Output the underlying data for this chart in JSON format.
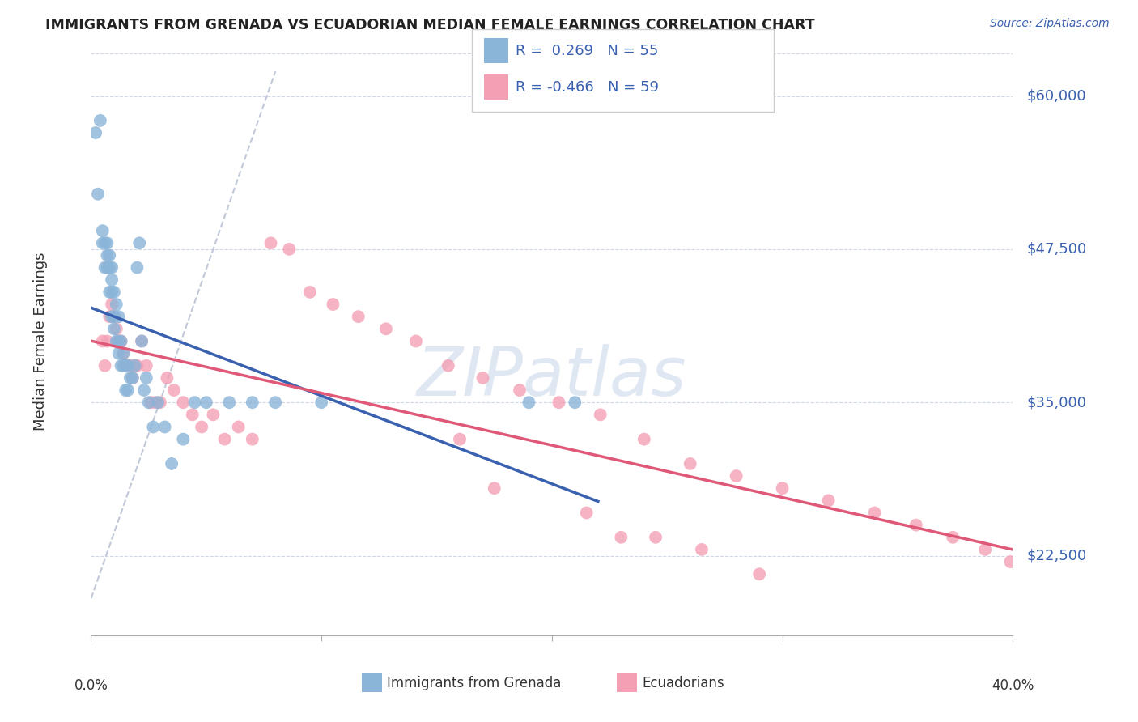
{
  "title": "IMMIGRANTS FROM GRENADA VS ECUADORIAN MEDIAN FEMALE EARNINGS CORRELATION CHART",
  "source": "Source: ZipAtlas.com",
  "ylabel": "Median Female Earnings",
  "yticks": [
    22500,
    35000,
    47500,
    60000
  ],
  "ytick_labels": [
    "$22,500",
    "$35,000",
    "$47,500",
    "$60,000"
  ],
  "xmin": 0.0,
  "xmax": 0.4,
  "ymin": 16000,
  "ymax": 64000,
  "blue_color": "#8ab4d8",
  "pink_color": "#f4a0b4",
  "blue_line_color": "#3a60b0",
  "pink_line_color": "#e05878",
  "ref_line_color": "#c0c8d8",
  "legend_label_blue": "Immigrants from Grenada",
  "legend_label_pink": "Ecuadorians",
  "watermark": "ZIPatlas",
  "title_color": "#222222",
  "source_color": "#3a60b0",
  "axis_label_color": "#333333",
  "tick_label_color": "#3a60b0",
  "blue_x": [
    0.002,
    0.003,
    0.004,
    0.005,
    0.005,
    0.006,
    0.006,
    0.007,
    0.007,
    0.007,
    0.008,
    0.008,
    0.008,
    0.009,
    0.009,
    0.009,
    0.009,
    0.01,
    0.01,
    0.01,
    0.011,
    0.011,
    0.012,
    0.012,
    0.012,
    0.013,
    0.013,
    0.014,
    0.014,
    0.015,
    0.015,
    0.016,
    0.016,
    0.017,
    0.018,
    0.019,
    0.02,
    0.021,
    0.022,
    0.023,
    0.024,
    0.025,
    0.027,
    0.029,
    0.032,
    0.035,
    0.04,
    0.045,
    0.05,
    0.06,
    0.07,
    0.08,
    0.1,
    0.19,
    0.21
  ],
  "blue_y": [
    57000,
    52000,
    58000,
    49000,
    48000,
    48000,
    46000,
    48000,
    47000,
    46000,
    47000,
    46000,
    44000,
    46000,
    45000,
    44000,
    42000,
    44000,
    42000,
    41000,
    43000,
    40000,
    42000,
    40000,
    39000,
    40000,
    38000,
    39000,
    38000,
    38000,
    36000,
    38000,
    36000,
    37000,
    37000,
    38000,
    46000,
    48000,
    40000,
    36000,
    37000,
    35000,
    33000,
    35000,
    33000,
    30000,
    32000,
    35000,
    35000,
    35000,
    35000,
    35000,
    35000,
    35000,
    35000
  ],
  "pink_x": [
    0.005,
    0.006,
    0.007,
    0.008,
    0.009,
    0.01,
    0.011,
    0.012,
    0.013,
    0.014,
    0.015,
    0.016,
    0.017,
    0.018,
    0.019,
    0.02,
    0.022,
    0.024,
    0.026,
    0.028,
    0.03,
    0.033,
    0.036,
    0.04,
    0.044,
    0.048,
    0.053,
    0.058,
    0.064,
    0.07,
    0.078,
    0.086,
    0.095,
    0.105,
    0.116,
    0.128,
    0.141,
    0.155,
    0.17,
    0.186,
    0.203,
    0.221,
    0.24,
    0.26,
    0.28,
    0.3,
    0.32,
    0.34,
    0.358,
    0.374,
    0.388,
    0.399,
    0.16,
    0.175,
    0.215,
    0.23,
    0.245,
    0.265,
    0.29
  ],
  "pink_y": [
    40000,
    38000,
    40000,
    42000,
    43000,
    42000,
    41000,
    40000,
    40000,
    39000,
    38000,
    38000,
    38000,
    37000,
    38000,
    38000,
    40000,
    38000,
    35000,
    35000,
    35000,
    37000,
    36000,
    35000,
    34000,
    33000,
    34000,
    32000,
    33000,
    32000,
    48000,
    47500,
    44000,
    43000,
    42000,
    41000,
    40000,
    38000,
    37000,
    36000,
    35000,
    34000,
    32000,
    30000,
    29000,
    28000,
    27000,
    26000,
    25000,
    24000,
    23000,
    22000,
    32000,
    28000,
    26000,
    24000,
    24000,
    23000,
    21000
  ]
}
